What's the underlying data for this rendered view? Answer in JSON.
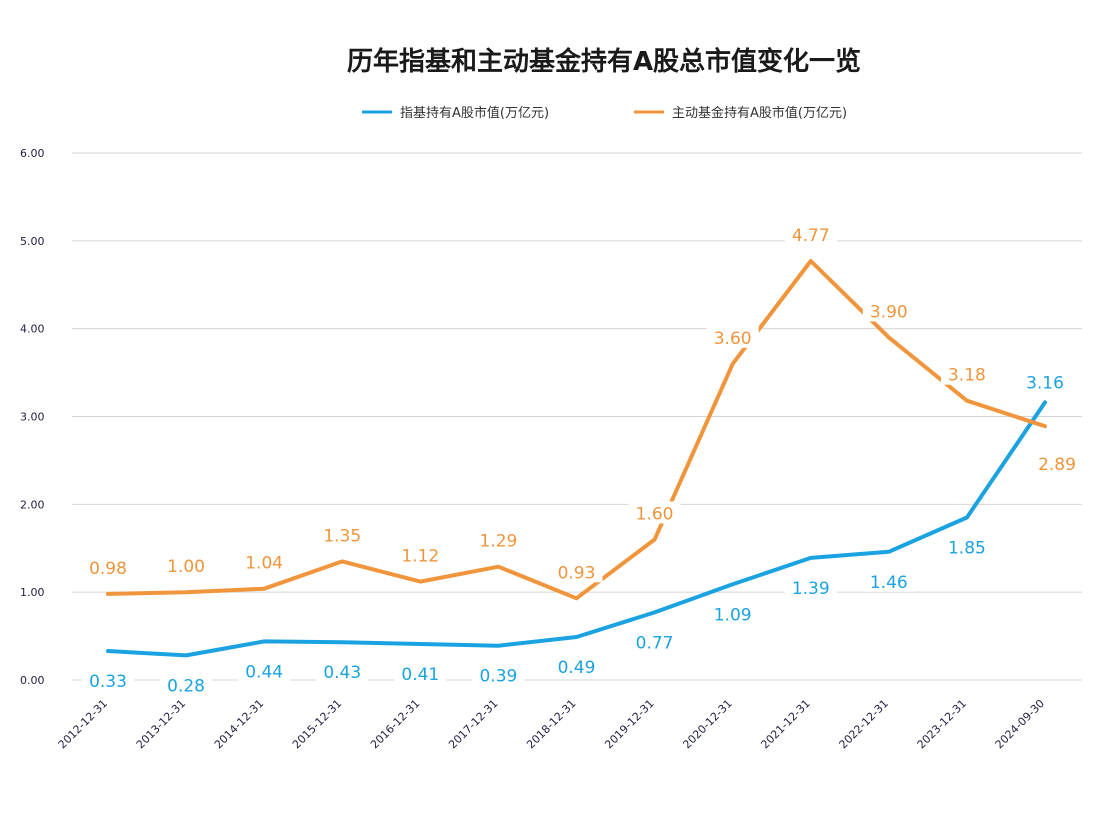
{
  "chart_data": {
    "type": "line",
    "title": "历年指基和主动基金持有A股总市值变化一览",
    "categories": [
      "2012-12-31",
      "2013-12-31",
      "2014-12-31",
      "2015-12-31",
      "2016-12-31",
      "2017-12-31",
      "2018-12-31",
      "2019-12-31",
      "2020-12-31",
      "2021-12-31",
      "2022-12-31",
      "2023-12-31",
      "2024-09-30"
    ],
    "ylim": [
      0,
      6
    ],
    "yticks": [
      "0.00",
      "1.00",
      "2.00",
      "3.00",
      "4.00",
      "5.00",
      "6.00"
    ],
    "grid": true,
    "legend_position": "top",
    "series": [
      {
        "name": "指基持有A股市值(万亿元)",
        "color": "#1aa3e0",
        "values": [
          0.33,
          0.28,
          0.44,
          0.43,
          0.41,
          0.39,
          0.49,
          0.77,
          1.09,
          1.39,
          1.46,
          1.85,
          3.16
        ],
        "labels": [
          "0.33",
          "0.28",
          "0.44",
          "0.43",
          "0.41",
          "0.39",
          "0.49",
          "0.77",
          "1.09",
          "1.39",
          "1.46",
          "1.85",
          "3.16"
        ]
      },
      {
        "name": "主动基金持有A股市值(万亿元)",
        "color": "#f0953c",
        "values": [
          0.98,
          1.0,
          1.04,
          1.35,
          1.12,
          1.29,
          0.93,
          1.6,
          3.6,
          4.77,
          3.9,
          3.18,
          2.89
        ],
        "labels": [
          "0.98",
          "1.00",
          "1.04",
          "1.35",
          "1.12",
          "1.29",
          "0.93",
          "1.60",
          "3.60",
          "4.77",
          "3.90",
          "3.18",
          "2.89"
        ]
      }
    ]
  }
}
